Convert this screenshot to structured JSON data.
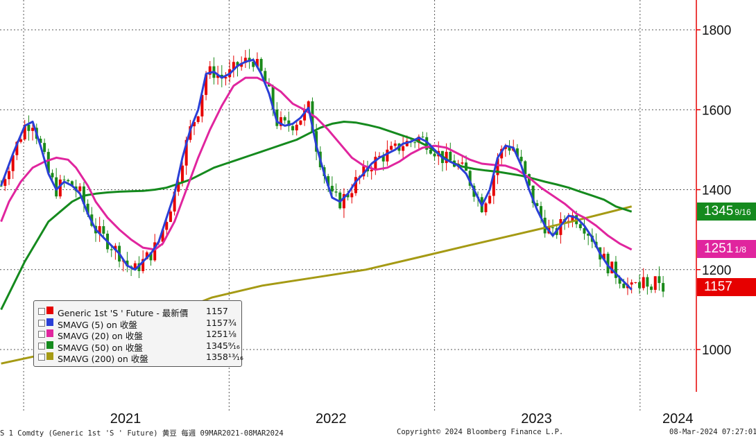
{
  "chart_data": {
    "type": "candlestick-line",
    "ylim": [
      900,
      1880
    ],
    "yticks": [
      1000,
      1200,
      1400,
      1600,
      1800
    ],
    "xlim": [
      "2020-11-20",
      "2024-04-10"
    ],
    "xticks": [
      {
        "label": "2021",
        "date": "2021-07-01"
      },
      {
        "label": "2022",
        "date": "2022-07-01"
      },
      {
        "label": "2023",
        "date": "2023-07-01"
      },
      {
        "label": "2024",
        "date": "2024-03-08"
      }
    ],
    "year_dividers": [
      "2021-01-01",
      "2022-01-01",
      "2023-01-01",
      "2024-01-01"
    ],
    "grid": true,
    "close_series": [
      [
        "2020-11-22",
        1410
      ],
      [
        "2020-12-13",
        1490
      ],
      [
        "2021-01-03",
        1560
      ],
      [
        "2021-01-17",
        1570
      ],
      [
        "2021-01-31",
        1510
      ],
      [
        "2021-02-14",
        1440
      ],
      [
        "2021-02-28",
        1400
      ],
      [
        "2021-03-14",
        1420
      ],
      [
        "2021-03-28",
        1410
      ],
      [
        "2021-04-11",
        1390
      ],
      [
        "2021-04-25",
        1340
      ],
      [
        "2021-05-09",
        1300
      ],
      [
        "2021-05-23",
        1280
      ],
      [
        "2021-06-06",
        1260
      ],
      [
        "2021-06-20",
        1240
      ],
      [
        "2021-07-04",
        1210
      ],
      [
        "2021-07-18",
        1200
      ],
      [
        "2021-08-01",
        1220
      ],
      [
        "2021-08-15",
        1240
      ],
      [
        "2021-08-29",
        1270
      ],
      [
        "2021-09-12",
        1330
      ],
      [
        "2021-09-26",
        1390
      ],
      [
        "2021-10-10",
        1480
      ],
      [
        "2021-10-24",
        1550
      ],
      [
        "2021-11-07",
        1600
      ],
      [
        "2021-11-21",
        1690
      ],
      [
        "2021-12-05",
        1695
      ],
      [
        "2021-12-19",
        1680
      ],
      [
        "2022-01-02",
        1690
      ],
      [
        "2022-01-16",
        1710
      ],
      [
        "2022-01-30",
        1720
      ],
      [
        "2022-02-13",
        1725
      ],
      [
        "2022-02-27",
        1690
      ],
      [
        "2022-03-13",
        1640
      ],
      [
        "2022-03-27",
        1570
      ],
      [
        "2022-04-10",
        1560
      ],
      [
        "2022-04-24",
        1565
      ],
      [
        "2022-05-08",
        1580
      ],
      [
        "2022-05-22",
        1605
      ],
      [
        "2022-06-05",
        1510
      ],
      [
        "2022-06-19",
        1440
      ],
      [
        "2022-07-03",
        1380
      ],
      [
        "2022-07-17",
        1370
      ],
      [
        "2022-07-31",
        1390
      ],
      [
        "2022-08-14",
        1420
      ],
      [
        "2022-08-28",
        1440
      ],
      [
        "2022-09-11",
        1465
      ],
      [
        "2022-09-25",
        1480
      ],
      [
        "2022-10-09",
        1490
      ],
      [
        "2022-10-23",
        1500
      ],
      [
        "2022-11-06",
        1515
      ],
      [
        "2022-11-20",
        1520
      ],
      [
        "2022-12-04",
        1530
      ],
      [
        "2022-12-18",
        1520
      ],
      [
        "2023-01-01",
        1500
      ],
      [
        "2023-01-15",
        1480
      ],
      [
        "2023-01-29",
        1470
      ],
      [
        "2023-02-12",
        1460
      ],
      [
        "2023-02-26",
        1440
      ],
      [
        "2023-03-12",
        1400
      ],
      [
        "2023-03-26",
        1360
      ],
      [
        "2023-04-09",
        1400
      ],
      [
        "2023-04-23",
        1480
      ],
      [
        "2023-05-07",
        1510
      ],
      [
        "2023-05-21",
        1505
      ],
      [
        "2023-06-04",
        1460
      ],
      [
        "2023-06-18",
        1400
      ],
      [
        "2023-07-02",
        1350
      ],
      [
        "2023-07-16",
        1310
      ],
      [
        "2023-07-30",
        1285
      ],
      [
        "2023-08-13",
        1310
      ],
      [
        "2023-08-27",
        1335
      ],
      [
        "2023-09-10",
        1330
      ],
      [
        "2023-09-24",
        1310
      ],
      [
        "2023-10-08",
        1280
      ],
      [
        "2023-10-22",
        1240
      ],
      [
        "2023-11-05",
        1210
      ],
      [
        "2023-11-19",
        1190
      ],
      [
        "2023-12-03",
        1170
      ],
      [
        "2023-12-17",
        1150
      ]
    ],
    "sma5_series": [
      [
        "2020-11-22",
        1410
      ],
      [
        "2020-12-13",
        1490
      ],
      [
        "2021-01-03",
        1560
      ],
      [
        "2021-01-17",
        1570
      ],
      [
        "2021-01-31",
        1510
      ],
      [
        "2021-02-14",
        1440
      ],
      [
        "2021-02-28",
        1400
      ],
      [
        "2021-03-14",
        1420
      ],
      [
        "2021-03-28",
        1410
      ],
      [
        "2021-04-11",
        1390
      ],
      [
        "2021-04-25",
        1340
      ],
      [
        "2021-05-09",
        1300
      ],
      [
        "2021-05-23",
        1280
      ],
      [
        "2021-06-06",
        1260
      ],
      [
        "2021-06-20",
        1240
      ],
      [
        "2021-07-04",
        1210
      ],
      [
        "2021-07-18",
        1200
      ],
      [
        "2021-08-01",
        1220
      ],
      [
        "2021-08-15",
        1240
      ],
      [
        "2021-08-29",
        1270
      ],
      [
        "2021-09-12",
        1330
      ],
      [
        "2021-09-26",
        1390
      ],
      [
        "2021-10-10",
        1480
      ],
      [
        "2021-10-24",
        1550
      ],
      [
        "2021-11-07",
        1600
      ],
      [
        "2021-11-21",
        1690
      ],
      [
        "2021-12-05",
        1695
      ],
      [
        "2021-12-19",
        1680
      ],
      [
        "2022-01-02",
        1690
      ],
      [
        "2022-01-16",
        1710
      ],
      [
        "2022-01-30",
        1720
      ],
      [
        "2022-02-13",
        1725
      ],
      [
        "2022-02-27",
        1690
      ],
      [
        "2022-03-13",
        1640
      ],
      [
        "2022-03-27",
        1570
      ],
      [
        "2022-04-10",
        1560
      ],
      [
        "2022-04-24",
        1565
      ],
      [
        "2022-05-08",
        1580
      ],
      [
        "2022-05-22",
        1605
      ],
      [
        "2022-06-05",
        1510
      ],
      [
        "2022-06-19",
        1440
      ],
      [
        "2022-07-03",
        1380
      ],
      [
        "2022-07-17",
        1370
      ],
      [
        "2022-07-31",
        1390
      ],
      [
        "2022-08-14",
        1420
      ],
      [
        "2022-08-28",
        1440
      ],
      [
        "2022-09-11",
        1465
      ],
      [
        "2022-09-25",
        1480
      ],
      [
        "2022-10-09",
        1490
      ],
      [
        "2022-10-23",
        1500
      ],
      [
        "2022-11-06",
        1515
      ],
      [
        "2022-11-20",
        1520
      ],
      [
        "2022-12-04",
        1530
      ],
      [
        "2022-12-18",
        1520
      ],
      [
        "2023-01-01",
        1500
      ],
      [
        "2023-01-15",
        1480
      ],
      [
        "2023-01-29",
        1470
      ],
      [
        "2023-02-12",
        1460
      ],
      [
        "2023-02-26",
        1440
      ],
      [
        "2023-03-12",
        1400
      ],
      [
        "2023-03-26",
        1360
      ],
      [
        "2023-04-09",
        1400
      ],
      [
        "2023-04-23",
        1480
      ],
      [
        "2023-05-07",
        1510
      ],
      [
        "2023-05-21",
        1505
      ],
      [
        "2023-06-04",
        1460
      ],
      [
        "2023-06-18",
        1400
      ],
      [
        "2023-07-02",
        1350
      ],
      [
        "2023-07-16",
        1310
      ],
      [
        "2023-07-30",
        1285
      ],
      [
        "2023-08-13",
        1310
      ],
      [
        "2023-08-27",
        1335
      ],
      [
        "2023-09-10",
        1330
      ],
      [
        "2023-09-24",
        1310
      ],
      [
        "2023-10-08",
        1280
      ],
      [
        "2023-10-22",
        1240
      ],
      [
        "2023-11-05",
        1210
      ],
      [
        "2023-11-19",
        1190
      ],
      [
        "2023-12-03",
        1170
      ],
      [
        "2023-12-17",
        1150
      ]
    ],
    "sma20_series": [
      [
        "2020-11-22",
        1320
      ],
      [
        "2020-12-06",
        1370
      ],
      [
        "2020-12-27",
        1420
      ],
      [
        "2021-01-17",
        1455
      ],
      [
        "2021-02-07",
        1470
      ],
      [
        "2021-02-28",
        1480
      ],
      [
        "2021-03-21",
        1475
      ],
      [
        "2021-04-04",
        1455
      ],
      [
        "2021-04-25",
        1410
      ],
      [
        "2021-05-09",
        1370
      ],
      [
        "2021-05-30",
        1330
      ],
      [
        "2021-06-20",
        1300
      ],
      [
        "2021-07-11",
        1275
      ],
      [
        "2021-08-01",
        1255
      ],
      [
        "2021-08-22",
        1250
      ],
      [
        "2021-09-05",
        1265
      ],
      [
        "2021-09-26",
        1320
      ],
      [
        "2021-10-17",
        1400
      ],
      [
        "2021-11-07",
        1480
      ],
      [
        "2021-11-28",
        1550
      ],
      [
        "2021-12-19",
        1610
      ],
      [
        "2022-01-09",
        1660
      ],
      [
        "2022-01-30",
        1680
      ],
      [
        "2022-02-20",
        1680
      ],
      [
        "2022-03-13",
        1665
      ],
      [
        "2022-04-03",
        1645
      ],
      [
        "2022-04-24",
        1615
      ],
      [
        "2022-05-15",
        1600
      ],
      [
        "2022-06-05",
        1580
      ],
      [
        "2022-06-26",
        1550
      ],
      [
        "2022-07-17",
        1515
      ],
      [
        "2022-08-07",
        1480
      ],
      [
        "2022-08-28",
        1460
      ],
      [
        "2022-09-18",
        1450
      ],
      [
        "2022-10-09",
        1455
      ],
      [
        "2022-10-30",
        1470
      ],
      [
        "2022-11-20",
        1490
      ],
      [
        "2022-12-11",
        1505
      ],
      [
        "2023-01-01",
        1510
      ],
      [
        "2023-01-22",
        1505
      ],
      [
        "2023-02-12",
        1490
      ],
      [
        "2023-03-05",
        1475
      ],
      [
        "2023-03-26",
        1465
      ],
      [
        "2023-04-16",
        1462
      ],
      [
        "2023-05-07",
        1460
      ],
      [
        "2023-05-28",
        1450
      ],
      [
        "2023-06-18",
        1430
      ],
      [
        "2023-07-09",
        1405
      ],
      [
        "2023-07-30",
        1385
      ],
      [
        "2023-08-20",
        1365
      ],
      [
        "2023-09-10",
        1340
      ],
      [
        "2023-09-24",
        1330
      ],
      [
        "2023-10-15",
        1310
      ],
      [
        "2023-11-05",
        1285
      ],
      [
        "2023-11-26",
        1265
      ],
      [
        "2023-12-17",
        1250
      ]
    ],
    "sma50_series": [
      [
        "2020-11-22",
        1100
      ],
      [
        "2020-12-13",
        1160
      ],
      [
        "2021-01-03",
        1220
      ],
      [
        "2021-01-24",
        1270
      ],
      [
        "2021-02-14",
        1320
      ],
      [
        "2021-03-07",
        1345
      ],
      [
        "2021-03-28",
        1370
      ],
      [
        "2021-04-18",
        1385
      ],
      [
        "2021-05-09",
        1390
      ],
      [
        "2021-05-30",
        1393
      ],
      [
        "2021-06-20",
        1395
      ],
      [
        "2021-07-11",
        1396
      ],
      [
        "2021-08-01",
        1397
      ],
      [
        "2021-08-22",
        1400
      ],
      [
        "2021-09-12",
        1405
      ],
      [
        "2021-10-03",
        1415
      ],
      [
        "2021-10-24",
        1425
      ],
      [
        "2021-11-14",
        1440
      ],
      [
        "2021-12-05",
        1455
      ],
      [
        "2021-12-26",
        1465
      ],
      [
        "2022-01-16",
        1475
      ],
      [
        "2022-02-06",
        1485
      ],
      [
        "2022-02-27",
        1495
      ],
      [
        "2022-03-20",
        1505
      ],
      [
        "2022-04-10",
        1515
      ],
      [
        "2022-05-01",
        1525
      ],
      [
        "2022-05-22",
        1540
      ],
      [
        "2022-06-12",
        1555
      ],
      [
        "2022-07-03",
        1565
      ],
      [
        "2022-07-24",
        1570
      ],
      [
        "2022-08-14",
        1568
      ],
      [
        "2022-09-04",
        1562
      ],
      [
        "2022-09-25",
        1555
      ],
      [
        "2022-10-16",
        1545
      ],
      [
        "2022-11-06",
        1535
      ],
      [
        "2022-11-27",
        1525
      ],
      [
        "2022-12-18",
        1510
      ],
      [
        "2023-01-08",
        1490
      ],
      [
        "2023-01-29",
        1470
      ],
      [
        "2023-02-19",
        1458
      ],
      [
        "2023-03-12",
        1452
      ],
      [
        "2023-04-02",
        1448
      ],
      [
        "2023-04-23",
        1445
      ],
      [
        "2023-05-14",
        1440
      ],
      [
        "2023-06-04",
        1435
      ],
      [
        "2023-06-25",
        1428
      ],
      [
        "2023-07-16",
        1420
      ],
      [
        "2023-08-06",
        1413
      ],
      [
        "2023-08-27",
        1405
      ],
      [
        "2023-09-17",
        1395
      ],
      [
        "2023-10-08",
        1385
      ],
      [
        "2023-10-29",
        1375
      ],
      [
        "2023-11-19",
        1358
      ],
      [
        "2023-12-17",
        1345
      ]
    ],
    "sma200_series": [
      [
        "2020-11-22",
        965
      ],
      [
        "2021-03-01",
        995
      ],
      [
        "2021-06-01",
        1030
      ],
      [
        "2021-09-01",
        1080
      ],
      [
        "2021-12-01",
        1130
      ],
      [
        "2022-03-01",
        1160
      ],
      [
        "2022-06-01",
        1180
      ],
      [
        "2022-09-01",
        1200
      ],
      [
        "2022-12-01",
        1230
      ],
      [
        "2023-03-01",
        1260
      ],
      [
        "2023-06-01",
        1290
      ],
      [
        "2023-09-01",
        1320
      ],
      [
        "2023-12-17",
        1358
      ]
    ],
    "legend": {
      "title": "Generic 1st 'S ' Future",
      "rows": [
        {
          "name": "Generic 1st 'S ' Future - 最新價",
          "value": "1157",
          "color": "#e60000"
        },
        {
          "name": "SMAVG (5)  on 收盤",
          "value": "1157¾",
          "color": "#2a3fd6"
        },
        {
          "name": "SMAVG (20)  on 收盤",
          "value": "1251⅛",
          "color": "#e0259e"
        },
        {
          "name": "SMAVG (50)  on 收盤",
          "value": "1345⁹⁄₁₆",
          "color": "#158a1e"
        },
        {
          "name": "SMAVG (200)  on 收盤",
          "value": "1358¹³⁄₁₆",
          "color": "#a59a14"
        }
      ]
    },
    "price_tags": [
      {
        "label": "1345",
        "frac": "9/16",
        "value": 1345.56,
        "color": "#158a1e"
      },
      {
        "label": "1251",
        "frac": "1/8",
        "value": 1251.13,
        "color": "#e0259e"
      },
      {
        "label": "1157",
        "frac": "",
        "value": 1157,
        "color": "#e60000"
      }
    ]
  },
  "footer": {
    "left": "S 1 Comdty (Generic 1st 'S ' Future) 黄豆  每週 09MAR2021-08MAR2024",
    "center": "Copyright© 2024 Bloomberg Finance L.P.",
    "right": "08-Mar-2024 07:27:01"
  },
  "colors": {
    "up": "#e60000",
    "down": "#1a8a1a",
    "axis": "#e60000",
    "grid": "#555555"
  }
}
